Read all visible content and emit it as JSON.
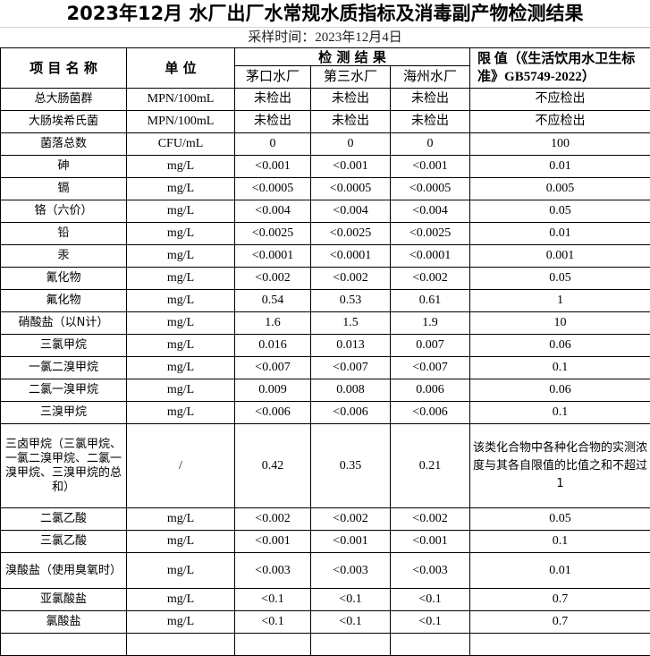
{
  "title": "2023年12月  水厂出厂水常规水质指标及消毒副产物检测结果",
  "subtitle": "采样时间：2023年12月4日",
  "headers": {
    "item": "项 目 名 称",
    "unit": "单 位",
    "results": "检 测 结 果",
    "limit": "限 值（《生活饮用水卫生标准》GB5749-2022）",
    "plants": [
      "茅口水厂",
      "第三水厂",
      "海州水厂"
    ]
  },
  "rows": [
    {
      "name": "总大肠菌群",
      "unit": "MPN/100mL",
      "v": [
        "未检出",
        "未检出",
        "未检出"
      ],
      "limit": "不应检出"
    },
    {
      "name": "大肠埃希氏菌",
      "unit": "MPN/100mL",
      "v": [
        "未检出",
        "未检出",
        "未检出"
      ],
      "limit": "不应检出"
    },
    {
      "name": "菌落总数",
      "unit": "CFU/mL",
      "v": [
        "0",
        "0",
        "0"
      ],
      "limit": "100"
    },
    {
      "name": "砷",
      "unit": "mg/L",
      "v": [
        "<0.001",
        "<0.001",
        "<0.001"
      ],
      "limit": "0.01"
    },
    {
      "name": "镉",
      "unit": "mg/L",
      "v": [
        "<0.0005",
        "<0.0005",
        "<0.0005"
      ],
      "limit": "0.005"
    },
    {
      "name": "铬（六价）",
      "unit": "mg/L",
      "v": [
        "<0.004",
        "<0.004",
        "<0.004"
      ],
      "limit": "0.05"
    },
    {
      "name": "铅",
      "unit": "mg/L",
      "v": [
        "<0.0025",
        "<0.0025",
        "<0.0025"
      ],
      "limit": "0.01"
    },
    {
      "name": "汞",
      "unit": "mg/L",
      "v": [
        "<0.0001",
        "<0.0001",
        "<0.0001"
      ],
      "limit": "0.001"
    },
    {
      "name": "氰化物",
      "unit": "mg/L",
      "v": [
        "<0.002",
        "<0.002",
        "<0.002"
      ],
      "limit": "0.05"
    },
    {
      "name": "氟化物",
      "unit": "mg/L",
      "v": [
        "0.54",
        "0.53",
        "0.61"
      ],
      "limit": "1"
    },
    {
      "name": "硝酸盐（以N计）",
      "unit": "mg/L",
      "v": [
        "1.6",
        "1.5",
        "1.9"
      ],
      "limit": "10"
    },
    {
      "name": "三氯甲烷",
      "unit": "mg/L",
      "v": [
        "0.016",
        "0.013",
        "0.007"
      ],
      "limit": "0.06"
    },
    {
      "name": "一氯二溴甲烷",
      "unit": "mg/L",
      "v": [
        "<0.007",
        "<0.007",
        "<0.007"
      ],
      "limit": "0.1"
    },
    {
      "name": "二氯一溴甲烷",
      "unit": "mg/L",
      "v": [
        "0.009",
        "0.008",
        "0.006"
      ],
      "limit": "0.06"
    },
    {
      "name": "三溴甲烷",
      "unit": "mg/L",
      "v": [
        "<0.006",
        "<0.006",
        "<0.006"
      ],
      "limit": "0.1"
    },
    {
      "name": "三卤甲烷（三氯甲烷、一氯二溴甲烷、二氯一溴甲烷、三溴甲烷的总和）",
      "unit": "/",
      "v": [
        "0.42",
        "0.35",
        "0.21"
      ],
      "limit": "该类化合物中各种化合物的实测浓度与其各自限值的比值之和不超过1",
      "tall": 93
    },
    {
      "name": "二氯乙酸",
      "unit": "mg/L",
      "v": [
        "<0.002",
        "<0.002",
        "<0.002"
      ],
      "limit": "0.05"
    },
    {
      "name": "三氯乙酸",
      "unit": "mg/L",
      "v": [
        "<0.001",
        "<0.001",
        "<0.001"
      ],
      "limit": "0.1"
    },
    {
      "name": "溴酸盐（使用臭氧时）",
      "unit": "mg/L",
      "v": [
        "<0.003",
        "<0.003",
        "<0.003"
      ],
      "limit": "0.01",
      "tall": 39
    },
    {
      "name": "亚氯酸盐",
      "unit": "mg/L",
      "v": [
        "<0.1",
        "<0.1",
        "<0.1"
      ],
      "limit": "0.7"
    },
    {
      "name": "氯酸盐",
      "unit": "mg/L",
      "v": [
        "<0.1",
        "<0.1",
        "<0.1"
      ],
      "limit": "0.7"
    }
  ]
}
